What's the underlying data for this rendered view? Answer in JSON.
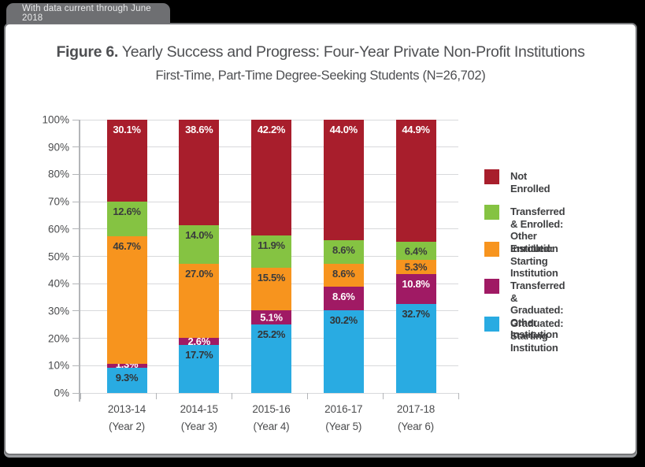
{
  "banner": {
    "text": "With data current through June 2018"
  },
  "title": {
    "prefix": "Figure 6.",
    "rest": " Yearly Success and Progress: Four-Year Private Non-Profit Institutions"
  },
  "subtitle": "First-Time, Part-Time Degree-Seeking Students (N=26,702)",
  "chart_data": {
    "type": "bar",
    "variant": "stacked-percent",
    "title": "Figure 6. Yearly Success and Progress: Four-Year Private Non-Profit Institutions",
    "subtitle": "First-Time, Part-Time Degree-Seeking Students (N=26,702)",
    "categories": [
      {
        "year": "2013-14",
        "cohort": "(Year 2)"
      },
      {
        "year": "2014-15",
        "cohort": "(Year 3)"
      },
      {
        "year": "2015-16",
        "cohort": "(Year 4)"
      },
      {
        "year": "2016-17",
        "cohort": "(Year 5)"
      },
      {
        "year": "2017-18",
        "cohort": "(Year 6)"
      }
    ],
    "series": [
      {
        "name": "Graduated: Starting Institution",
        "color": "#29ABE2",
        "label_color": "#333436",
        "values": [
          9.3,
          17.7,
          25.2,
          30.2,
          32.7
        ]
      },
      {
        "name": "Transferred & Graduated: Other Institution",
        "color": "#A01A64",
        "label_color": "#FFFFFF",
        "values": [
          1.3,
          2.6,
          5.1,
          8.6,
          10.8
        ]
      },
      {
        "name": "Enrolled: Starting Institution",
        "color": "#F7941E",
        "label_color": "#3A3B3D",
        "values": [
          46.7,
          27.0,
          15.5,
          8.6,
          5.3
        ]
      },
      {
        "name": "Transferred & Enrolled: Other Institution",
        "color": "#85C342",
        "label_color": "#3A3B3D",
        "values": [
          12.6,
          14.0,
          11.9,
          8.6,
          6.4
        ]
      },
      {
        "name": "Not Enrolled",
        "color": "#A81E2C",
        "label_color": "#FFFFFF",
        "values": [
          30.1,
          38.6,
          42.2,
          44.0,
          44.9
        ]
      }
    ],
    "value_suffix": "%",
    "ylim": [
      0,
      100
    ],
    "yticks": [
      0,
      10,
      20,
      30,
      40,
      50,
      60,
      70,
      80,
      90,
      100
    ],
    "ytick_suffix": "%",
    "grid": true,
    "legend_position": "right"
  },
  "legend": {
    "items": [
      {
        "color": "#A81E2C",
        "label": "Not Enrolled"
      },
      {
        "color": "#85C342",
        "label": "Transferred & Enrolled:\nOther Institution"
      },
      {
        "color": "#F7941E",
        "label": "Enrolled:\nStarting Institution"
      },
      {
        "color": "#A01A64",
        "label": "Transferred & Graduated:\nOther Institution"
      },
      {
        "color": "#29ABE2",
        "label": "Graduated:\nStarting Institution"
      }
    ]
  }
}
